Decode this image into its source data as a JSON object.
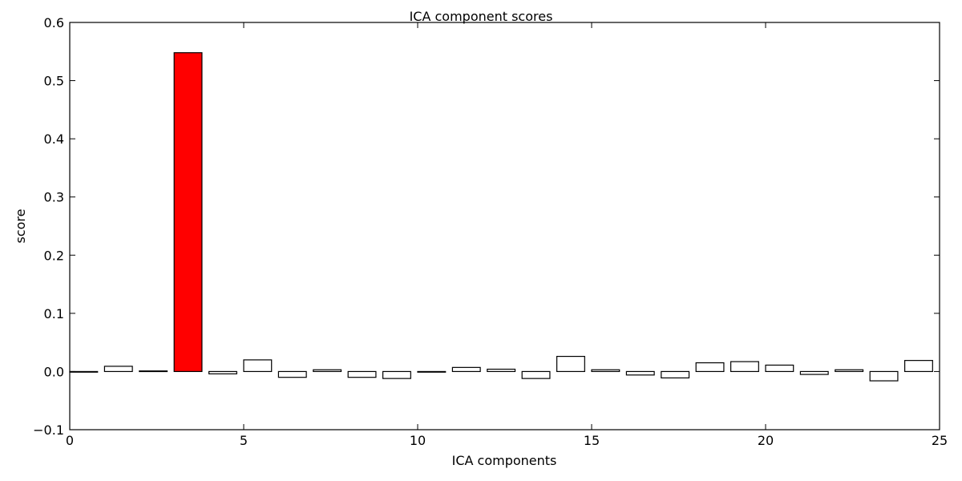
{
  "chart_data": {
    "type": "bar",
    "title": "ICA component scores",
    "xlabel": "ICA components",
    "ylabel": "score",
    "xlim": [
      0,
      25
    ],
    "ylim": [
      -0.1,
      0.6
    ],
    "xticks": [
      "0",
      "5",
      "10",
      "15",
      "20",
      "25"
    ],
    "yticks": [
      "−0.1",
      "0.0",
      "0.1",
      "0.2",
      "0.3",
      "0.4",
      "0.5",
      "0.6"
    ],
    "bar_width": 0.8,
    "grid": false,
    "highlight_index": 3,
    "colors": {
      "default": "#ffffff",
      "highlight": "#ff0000",
      "edge": "#000000"
    },
    "x": [
      0,
      1,
      2,
      3,
      4,
      5,
      6,
      7,
      8,
      9,
      10,
      11,
      12,
      13,
      14,
      15,
      16,
      17,
      18,
      19,
      20,
      21,
      22,
      23,
      24
    ],
    "values": [
      0.0,
      0.009,
      0.001,
      0.548,
      -0.004,
      0.02,
      -0.01,
      0.003,
      -0.01,
      -0.012,
      0.0,
      0.007,
      0.004,
      -0.012,
      0.026,
      0.003,
      -0.006,
      -0.011,
      0.015,
      0.017,
      0.011,
      -0.005,
      0.003,
      -0.016,
      0.019
    ]
  }
}
